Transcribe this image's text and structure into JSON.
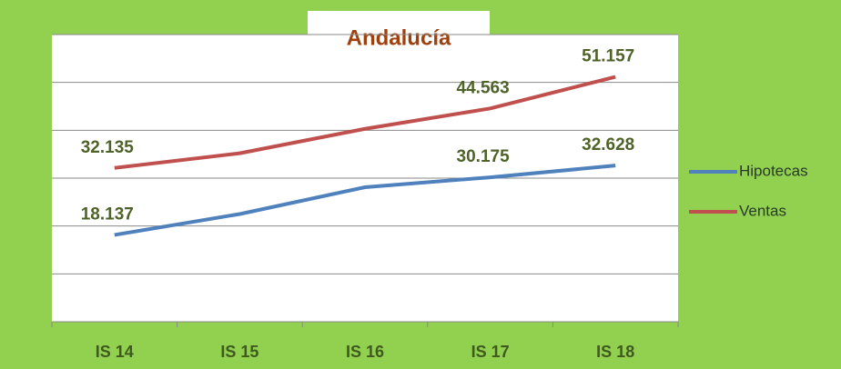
{
  "chart_data": {
    "type": "line",
    "title": "Andalucía",
    "categories": [
      "IS 14",
      "IS 15",
      "IS 16",
      "IS 17",
      "IS 18"
    ],
    "series": [
      {
        "name": "Hipotecas",
        "color": "#4f81bd",
        "values": [
          18137,
          22500,
          28100,
          30175,
          32628
        ],
        "value_labels": [
          "18.137",
          null,
          null,
          "30.175",
          "32.628"
        ]
      },
      {
        "name": "Ventas",
        "color": "#c0504d",
        "values": [
          32135,
          35200,
          40300,
          44563,
          51157
        ],
        "value_labels": [
          "32.135",
          null,
          null,
          "44.563",
          "51.157"
        ]
      }
    ],
    "ylim": [
      0,
      60000
    ],
    "yticks": [
      0,
      10000,
      20000,
      30000,
      40000,
      50000,
      60000
    ],
    "grid": true
  }
}
